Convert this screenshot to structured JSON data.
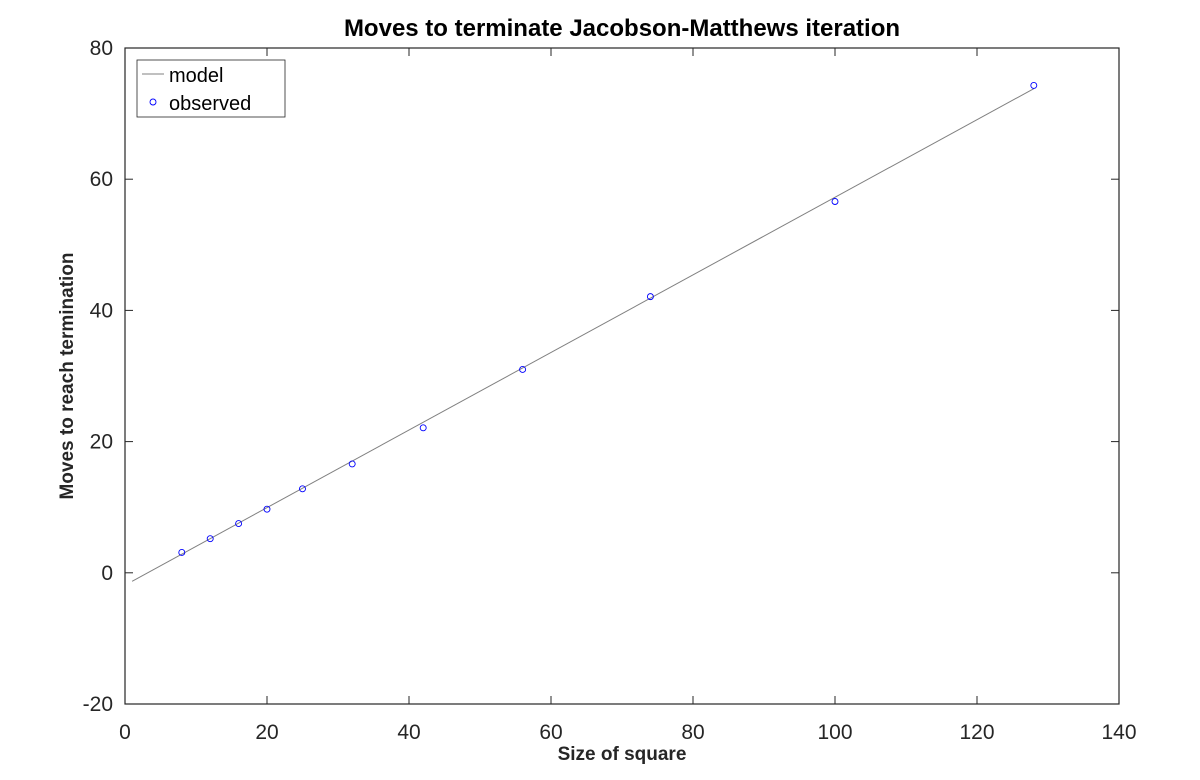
{
  "chart_data": {
    "type": "scatter",
    "title": "Moves to terminate Jacobson-Matthews iteration",
    "xlabel": "Size of square",
    "ylabel": "Moves to reach termination",
    "xlim": [
      0,
      140
    ],
    "ylim": [
      -20,
      80
    ],
    "xticks": [
      0,
      20,
      40,
      60,
      80,
      100,
      120,
      140
    ],
    "yticks": [
      -20,
      0,
      20,
      40,
      60,
      80
    ],
    "grid": false,
    "legend_position": "top-left",
    "series": [
      {
        "name": "model",
        "kind": "line",
        "color": "#808080",
        "x": [
          1,
          128
        ],
        "y": [
          -1.3,
          73.8
        ]
      },
      {
        "name": "observed",
        "kind": "markers",
        "marker": "circle",
        "color": "#0000ff",
        "x": [
          8,
          12,
          16,
          20,
          25,
          32,
          42,
          56,
          74,
          100,
          128
        ],
        "y": [
          3.1,
          5.2,
          7.5,
          9.7,
          12.8,
          16.6,
          22.1,
          31.0,
          42.1,
          56.6,
          74.3
        ]
      }
    ]
  }
}
